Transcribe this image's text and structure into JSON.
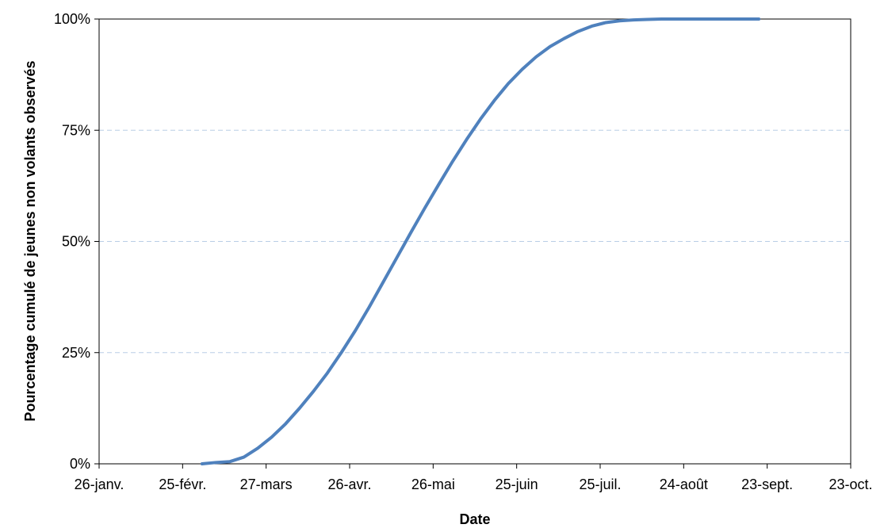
{
  "chart_data": {
    "type": "line",
    "xlabel": "Date",
    "ylabel": "Pourcentage cumulé de jeunes non volants observés",
    "x_tick_labels": [
      "26-janv.",
      "25-févr.",
      "27-mars",
      "26-avr.",
      "26-mai",
      "25-juin",
      "25-juil.",
      "24-août",
      "23-sept.",
      "23-oct."
    ],
    "x_tick_dates": [
      "26-janv.",
      "25-févr.",
      "27-mars",
      "26-avr.",
      "26-mai",
      "25-juin",
      "25-juil.",
      "24-août",
      "23-sept.",
      "23-oct."
    ],
    "y_tick_labels": [
      "0%",
      "25%",
      "50%",
      "75%",
      "100%"
    ],
    "y_tick_values": [
      0,
      25,
      50,
      75,
      100
    ],
    "ylim": [
      0,
      100
    ],
    "grid": "horizontal dashed",
    "line_color": "#4F81BD",
    "grid_color": "#B9CDE5",
    "series": [
      {
        "x": [
          "4-mars",
          "9-mars",
          "14-mars",
          "16-mars",
          "19-mars",
          "24-mars",
          "29-mars",
          "3-avr.",
          "8-avr.",
          "13-avr.",
          "18-avr.",
          "23-avr.",
          "28-avr.",
          "3-mai",
          "8-mai",
          "13-mai",
          "18-mai",
          "23-mai",
          "28-mai",
          "2-juin",
          "7-juin",
          "12-juin",
          "17-juin",
          "22-juin",
          "27-juin",
          "2-juil.",
          "7-juil.",
          "12-juil.",
          "17-juil.",
          "22-juil.",
          "27-juil.",
          "1-août",
          "6-août",
          "11-août",
          "16-août",
          "21-août",
          "26-août",
          "31-août",
          "5-sept.",
          "10-sept.",
          "15-sept.",
          "20-sept."
        ],
        "y": [
          0.0,
          0.3,
          0.5,
          0.9,
          1.5,
          3.5,
          6.0,
          9.0,
          12.5,
          16.3,
          20.4,
          25.0,
          29.9,
          35.2,
          40.8,
          46.4,
          52.0,
          57.5,
          62.8,
          68.0,
          72.9,
          77.5,
          81.7,
          85.5,
          88.7,
          91.5,
          93.8,
          95.6,
          97.2,
          98.4,
          99.2,
          99.6,
          99.8,
          99.9,
          100,
          100,
          100,
          100,
          100,
          100,
          100,
          100
        ]
      }
    ]
  }
}
